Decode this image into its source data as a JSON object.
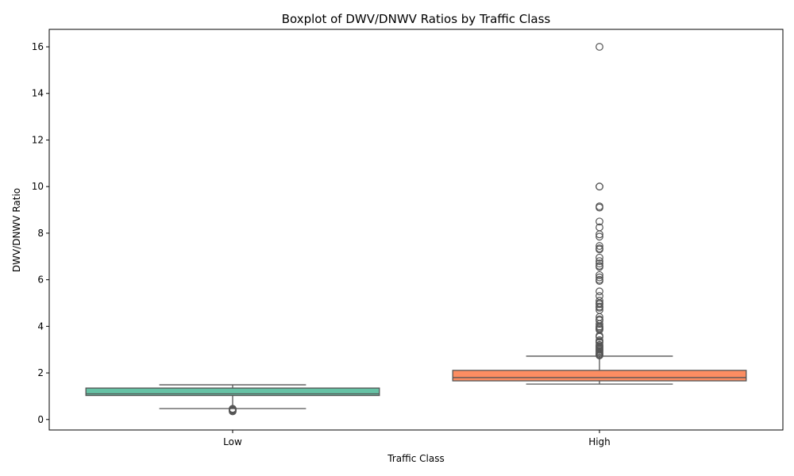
{
  "chart_data": {
    "type": "boxplot",
    "title": "Boxplot of DWV/DNWV Ratios by Traffic Class",
    "xlabel": "Traffic Class",
    "ylabel": "DWV/DNWV Ratio",
    "ylim": [
      -0.45,
      16.75
    ],
    "yticks": [
      0,
      2,
      4,
      6,
      8,
      10,
      12,
      14,
      16
    ],
    "grid": false,
    "categories": [
      "Low",
      "High"
    ],
    "boxes": [
      {
        "category": "Low",
        "color": "#66c2a5",
        "whisker_low": 0.47,
        "q1": 1.03,
        "median": 1.1,
        "q3": 1.35,
        "whisker_high": 1.49,
        "outliers": [
          0.35,
          0.38,
          0.41,
          0.44,
          0.46
        ]
      },
      {
        "category": "High",
        "color": "#fc8d62",
        "whisker_low": 1.52,
        "q1": 1.66,
        "median": 1.8,
        "q3": 2.11,
        "whisker_high": 2.72,
        "outliers": [
          16.0,
          10.0,
          10.0,
          9.15,
          9.1,
          8.5,
          8.25,
          7.95,
          7.85,
          7.45,
          7.35,
          7.3,
          6.95,
          6.8,
          6.7,
          6.6,
          6.55,
          6.2,
          6.1,
          6.0,
          5.95,
          5.5,
          5.3,
          5.1,
          5.0,
          4.95,
          4.85,
          4.8,
          4.7,
          4.4,
          4.3,
          4.25,
          4.1,
          4.0,
          3.95,
          3.9,
          3.85,
          3.6,
          3.55,
          3.4,
          3.35,
          3.3,
          3.2,
          3.15,
          3.1,
          3.05,
          3.0,
          2.95,
          2.9,
          2.85,
          2.8,
          2.78,
          2.75
        ]
      }
    ]
  }
}
